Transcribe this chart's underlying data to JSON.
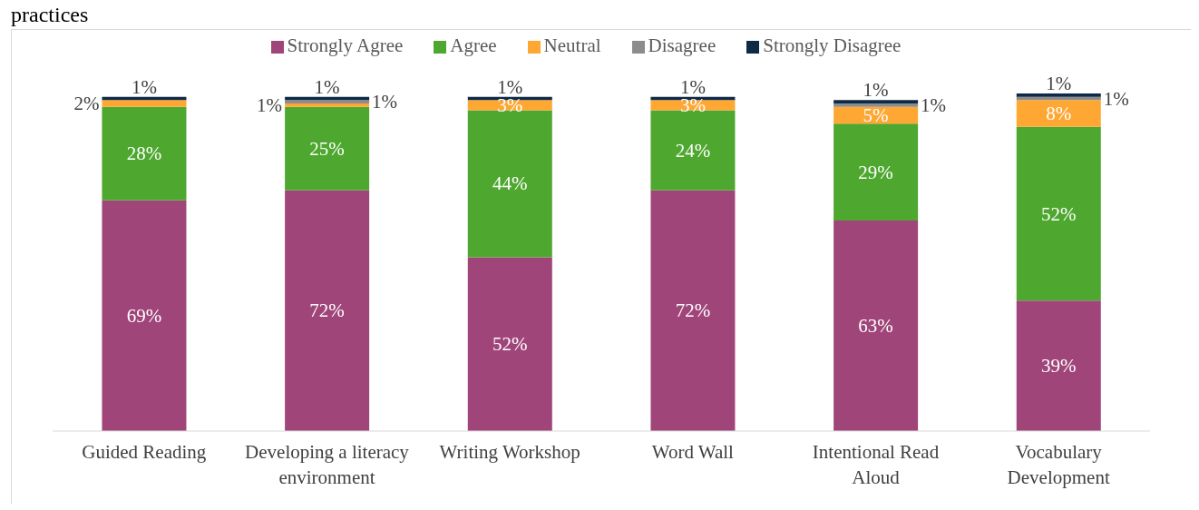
{
  "chart_data": {
    "type": "bar",
    "stacked": true,
    "title": "practices",
    "categories": [
      "Guided Reading",
      "Developing a literacy environment",
      "Writing Workshop",
      "Word Wall",
      "Intentional Read Aloud",
      "Vocabulary Development"
    ],
    "legend": "top",
    "grid": false,
    "series": [
      {
        "name": "Strongly Agree",
        "color": "#a0457a",
        "values": [
          69,
          72,
          52,
          72,
          63,
          39
        ],
        "value_labels": [
          "69%",
          "72%",
          "52%",
          "72%",
          "63%",
          "39%"
        ]
      },
      {
        "name": "Agree",
        "color": "#4ea72e",
        "values": [
          28,
          25,
          44,
          24,
          29,
          52
        ],
        "value_labels": [
          "28%",
          "25%",
          "44%",
          "24%",
          "29%",
          "52%"
        ]
      },
      {
        "name": "Neutral",
        "color": "#ffa733",
        "values": [
          2,
          1,
          3,
          3,
          5,
          8
        ],
        "value_labels": [
          "2%",
          "1%",
          "3%",
          "3%",
          "5%",
          "8%"
        ]
      },
      {
        "name": "Disagree",
        "color": "#8c8c8c",
        "values": [
          0,
          1,
          0,
          0,
          1,
          1
        ],
        "value_labels": [
          null,
          "1%",
          null,
          null,
          "1%",
          "1%"
        ]
      },
      {
        "name": "Strongly Disagree",
        "color": "#0e2a47",
        "values": [
          1,
          1,
          1,
          1,
          1,
          1
        ],
        "value_labels": [
          "1%",
          "1%",
          "1%",
          "1%",
          "1%",
          "1%"
        ]
      }
    ]
  }
}
